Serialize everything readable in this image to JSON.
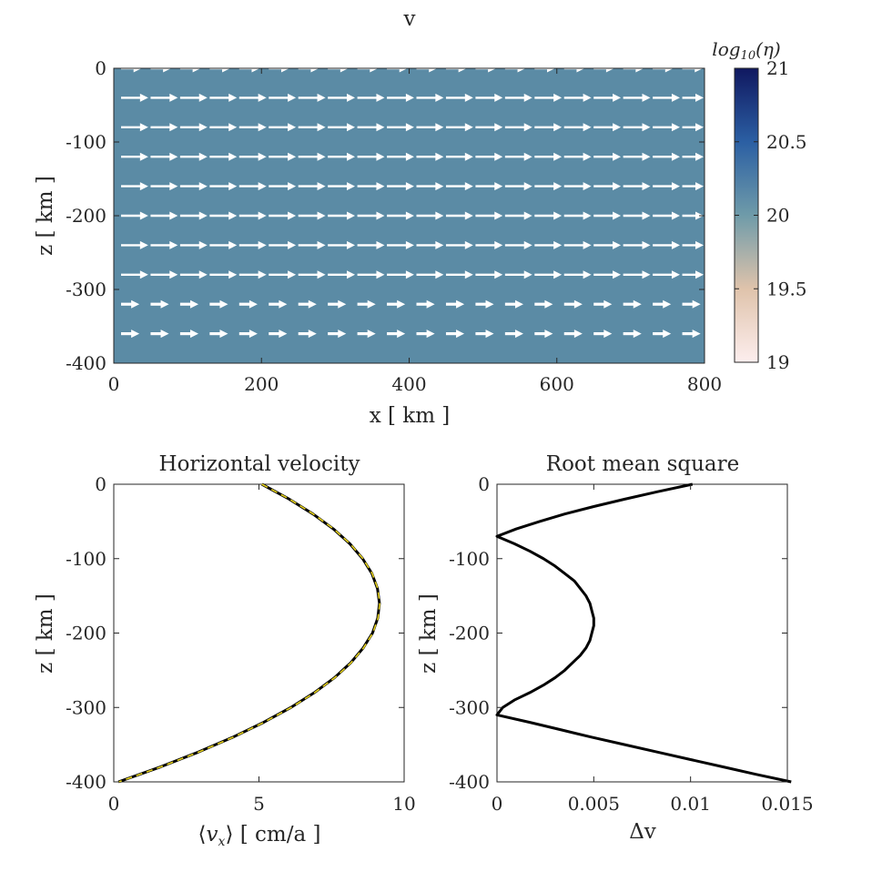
{
  "chart_data": [
    {
      "type": "heatmap",
      "panel": "velocity-field",
      "title": "v",
      "xlabel": "x [ km ]",
      "ylabel": "z [ km ]",
      "xlim": [
        0,
        800
      ],
      "ylim": [
        -400,
        0
      ],
      "x_ticks": [
        0,
        200,
        400,
        600,
        800
      ],
      "y_ticks": [
        0,
        -100,
        -200,
        -300,
        -400
      ],
      "field_value_log10_eta": 20,
      "field_color": "#5b8ba5",
      "arrow_color": "#ffffff",
      "arrow_rows": [
        {
          "z": 0,
          "style": "dashed"
        },
        {
          "z": -40,
          "style": "solid"
        },
        {
          "z": -80,
          "style": "solid"
        },
        {
          "z": -120,
          "style": "solid"
        },
        {
          "z": -160,
          "style": "solid"
        },
        {
          "z": -200,
          "style": "solid"
        },
        {
          "z": -240,
          "style": "solid"
        },
        {
          "z": -280,
          "style": "solid"
        },
        {
          "z": -320,
          "style": "dashed"
        },
        {
          "z": -360,
          "style": "dashed"
        }
      ],
      "colorbar": {
        "label": "log10(η)",
        "label_base": "log",
        "label_sub": "10",
        "label_arg": "(η)",
        "range": [
          19,
          21
        ],
        "ticks": [
          "21",
          "20.5",
          "20",
          "19.5",
          "19"
        ],
        "colors": [
          "#fdeeee",
          "#dfc3ab",
          "#6f9ba9",
          "#2b5fa3",
          "#101860"
        ]
      }
    },
    {
      "type": "line",
      "panel": "horizontal-velocity",
      "title": "Horizontal velocity",
      "xlabel": "⟨vx⟩ [ cm/a ]",
      "xlabel_open": "⟨",
      "xlabel_var": "v",
      "xlabel_sub": "x",
      "xlabel_close": "⟩ [ cm/a ]",
      "ylabel": "z [ km ]",
      "xlim": [
        0,
        10
      ],
      "ylim": [
        -400,
        0
      ],
      "x_ticks": [
        0,
        5,
        10
      ],
      "y_ticks": [
        0,
        -100,
        -200,
        -300,
        -400
      ],
      "series": [
        {
          "color": "#000000",
          "style": "solid",
          "z": [
            0,
            -20,
            -40,
            -60,
            -80,
            -100,
            -120,
            -140,
            -160,
            -180,
            -200,
            -220,
            -240,
            -260,
            -280,
            -300,
            -320,
            -340,
            -360,
            -380,
            -400
          ],
          "x": [
            5.1,
            6.04,
            6.86,
            7.56,
            8.13,
            8.57,
            8.89,
            9.08,
            9.15,
            9.09,
            8.91,
            8.59,
            8.16,
            7.6,
            6.91,
            6.1,
            5.16,
            4.1,
            2.91,
            1.6,
            0.16
          ]
        },
        {
          "color": "#e6d21e",
          "style": "dashed",
          "z": [
            0,
            -20,
            -40,
            -60,
            -80,
            -100,
            -120,
            -140,
            -160,
            -180,
            -200,
            -220,
            -240,
            -260,
            -280,
            -300,
            -320,
            -340,
            -360,
            -380,
            -400
          ],
          "x": [
            5.1,
            6.05,
            6.87,
            7.57,
            8.14,
            8.58,
            8.9,
            9.09,
            9.16,
            9.1,
            8.92,
            8.6,
            8.17,
            7.61,
            6.92,
            6.11,
            5.17,
            4.11,
            2.92,
            1.61,
            0.17
          ]
        }
      ]
    },
    {
      "type": "line",
      "panel": "root-mean-square",
      "title": "Root mean square",
      "xlabel": "Δv",
      "ylabel": "z [ km ]",
      "xlim": [
        0,
        0.015
      ],
      "ylim": [
        -400,
        0
      ],
      "x_ticks": [
        "0",
        "0.005",
        "0.01",
        "0.015"
      ],
      "x_tick_values": [
        0,
        0.005,
        0.01,
        0.015
      ],
      "y_ticks": [
        0,
        -100,
        -200,
        -300,
        -400
      ],
      "series": [
        {
          "color": "#000000",
          "style": "solid",
          "z": [
            0,
            -10,
            -20,
            -30,
            -40,
            -50,
            -60,
            -70,
            -80,
            -90,
            -100,
            -110,
            -120,
            -130,
            -140,
            -150,
            -160,
            -170,
            -180,
            -190,
            -200,
            -210,
            -220,
            -230,
            -240,
            -250,
            -260,
            -270,
            -280,
            -290,
            -300,
            -310,
            -320,
            -330,
            -340,
            -350,
            -360,
            -370,
            -380,
            -390,
            -400
          ],
          "x": [
            0.0101,
            0.0083,
            0.0066,
            0.005,
            0.0035,
            0.0022,
            0.001,
            0.0,
            0.0009,
            0.0017,
            0.0024,
            0.003,
            0.0035,
            0.004,
            0.0043,
            0.0046,
            0.0048,
            0.0049,
            0.005,
            0.005,
            0.0049,
            0.0048,
            0.0046,
            0.0043,
            0.0039,
            0.0035,
            0.003,
            0.0024,
            0.0017,
            0.0009,
            0.0003,
            0.0,
            0.0017,
            0.0033,
            0.0049,
            0.0066,
            0.0083,
            0.01,
            0.0117,
            0.0134,
            0.0152
          ]
        }
      ]
    }
  ]
}
